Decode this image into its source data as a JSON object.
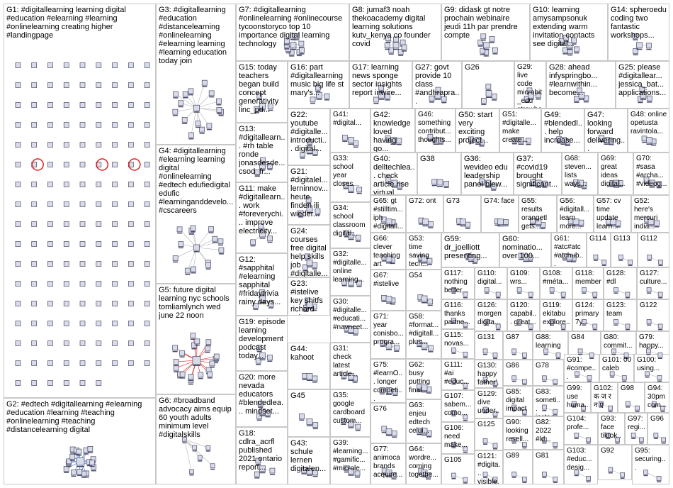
{
  "colors": {
    "panel_border": "#c8c8c8",
    "edge": "#b4b4b4",
    "node_fill": "#d8dce8",
    "node_stroke": "#4a4a6a",
    "accent_red": "#e02020",
    "accent_blue": "#2a62c8"
  },
  "groups": [
    {
      "id": "G1",
      "label": "G1: #digitallearning learning digital #education #elearning #learning #onlinelearning creating higher #landingpage",
      "nodes": 150,
      "style": "grid-isolates"
    },
    {
      "id": "G2",
      "label": "G2: #edtech #digitallearning #elearning #education #learning #teaching #onlinelearning #teaching #distancelearning digital",
      "nodes": 18,
      "style": "hub"
    },
    {
      "id": "G3",
      "label": "G3: #digitallearning #education #distancelearning #onlinelearning #elearning learning #learning education today join",
      "nodes": 16,
      "style": "hub"
    },
    {
      "id": "G4",
      "label": "G4: #digitallearning #elearning learning digital #onlinelearning #edtech edufiedigital edufic #learninganddevelo... #cscareers",
      "nodes": 14,
      "style": "hub"
    },
    {
      "id": "G5",
      "label": "G5: future digital learning nyc schools tomliamlynch wed june 22 noon",
      "nodes": 20,
      "style": "hub"
    },
    {
      "id": "G6",
      "label": "G6: #broadband advocacy aims equip 60 youth adults minimum level #digitalskills",
      "nodes": 6,
      "style": "pairs"
    },
    {
      "id": "G7",
      "label": "G7: #digitallearning #onlinelearning #onlinecourse tycoonstoryco top 10 importance digital learning technology",
      "nodes": 10,
      "style": "hub"
    },
    {
      "id": "G8",
      "label": "G8: jumaf3 noah thekoacademy digital learning solutions kutv_kenya co founder covid",
      "nodes": 8,
      "style": "hub"
    },
    {
      "id": "G9",
      "label": "G9: didask gt notre prochain webinaire jeudi 11h par prendre compte",
      "nodes": 7,
      "style": "hub"
    },
    {
      "id": "G10",
      "label": "G10: learning amysampsonuk extending warm invitation contacts see digital...",
      "nodes": 7,
      "style": "hub"
    },
    {
      "id": "G11",
      "label": "G11: make #digitallearn... work #foreverychi... improve electricity...",
      "nodes": 4,
      "style": "hub"
    },
    {
      "id": "G12",
      "label": "G12: #sapphital #elearning sapphital #fridaytrivia rainy days...",
      "nodes": 4,
      "style": "hub"
    },
    {
      "id": "G13",
      "label": "G13: #digitallearn... #rh table ronde jonasdesde... csod_fr...",
      "nodes": 4,
      "style": "hub"
    },
    {
      "id": "G14",
      "label": "G14: spheroedu coding two fantastic workshops...",
      "nodes": 4,
      "style": "hub"
    },
    {
      "id": "G15",
      "label": "G15: today teachers began build concept generativity linc_pd...",
      "nodes": 4,
      "style": "hub"
    },
    {
      "id": "G16",
      "label": "G16: part #digitallearning music big life st mary's...",
      "nodes": 4,
      "style": "hub"
    },
    {
      "id": "G17",
      "label": "G17: learning news sponge sector insights report inwire...",
      "nodes": 4,
      "style": "hub"
    },
    {
      "id": "G18",
      "label": "G18: cdlra_acrfl published 2021 ontario report...",
      "nodes": 4,
      "style": "hub"
    },
    {
      "id": "G19",
      "label": "G19: episode learning development podcast today...",
      "nodes": 4,
      "style": "hub"
    },
    {
      "id": "G20",
      "label": "G20: more nevada educators #blendedlea... mindset...",
      "nodes": 4,
      "style": "hub"
    },
    {
      "id": "G21",
      "label": "G21: #digitalel... lerninnov... heute finden ili wieder...",
      "nodes": 4,
      "style": "hub"
    },
    {
      "id": "G22",
      "label": "G22: youtube #digitalle... introducti... digital...",
      "nodes": 4,
      "style": "hub"
    },
    {
      "id": "G23",
      "label": "G23: #istelive key shitfs richard culatta...",
      "nodes": 4,
      "style": "hub"
    },
    {
      "id": "G24",
      "label": "G24: courses free digital help skills job #digitalle...",
      "nodes": 4,
      "style": "hub"
    },
    {
      "id": "G25",
      "label": "G25: please #digitallear... jessica_bat... applications...",
      "nodes": 4,
      "style": "hub"
    },
    {
      "id": "G26",
      "label": "G26",
      "nodes": 4,
      "style": "hub"
    },
    {
      "id": "G27",
      "label": "G27: govt provide 10 class #andhrapra...",
      "nodes": 4,
      "style": "hub"
    },
    {
      "id": "G28",
      "label": "G28: ahead infyspringbo... #learnwithin... become...",
      "nodes": 4,
      "style": "hub"
    },
    {
      "id": "G29",
      "label": "G29: live code microbit_edu strawbees...",
      "nodes": 4,
      "style": "hub"
    },
    {
      "id": "G30",
      "label": "G30: #digitalle... #educati... #navneet...",
      "nodes": 3,
      "style": "hub"
    },
    {
      "id": "G31",
      "label": "G31: check latest article...",
      "nodes": 3,
      "style": "hub"
    },
    {
      "id": "G32",
      "label": "G32: #digitalle... online learning...",
      "nodes": 3,
      "style": "hub"
    },
    {
      "id": "G33",
      "label": "G33: school year closes...",
      "nodes": 3,
      "style": "hub"
    },
    {
      "id": "G34",
      "label": "G34: school classroom digital...",
      "nodes": 3,
      "style": "hub"
    },
    {
      "id": "G35",
      "label": "G35: google cardboard custom...",
      "nodes": 3,
      "style": "hub"
    },
    {
      "id": "G36",
      "label": "G36: wevideo edu leadership panel blew...",
      "nodes": 3,
      "style": "hub"
    },
    {
      "id": "G37",
      "label": "G37: #covid19 brought significant...",
      "nodes": 3,
      "style": "hub"
    },
    {
      "id": "G38",
      "label": "G38",
      "nodes": 3,
      "style": "hub"
    },
    {
      "id": "G39",
      "label": "G39: #learning... #gamific... #microle...",
      "nodes": 3,
      "style": "hub"
    },
    {
      "id": "G40",
      "label": "G40: delltechlea... check article rise virtual...",
      "nodes": 3,
      "style": "hub"
    },
    {
      "id": "G41",
      "label": "G41: #digital...",
      "nodes": 3,
      "style": "hub"
    },
    {
      "id": "G42",
      "label": "G42: knowledge loved having go...",
      "nodes": 3,
      "style": "hub"
    },
    {
      "id": "G43",
      "label": "G43: schule lernen digitalen...",
      "nodes": 3,
      "style": "hub"
    },
    {
      "id": "G44",
      "label": "G44: kahoot",
      "nodes": 3,
      "style": "hub"
    },
    {
      "id": "G45",
      "label": "G45",
      "nodes": 3,
      "style": "hub"
    },
    {
      "id": "G46",
      "label": "G46: something contribut... thoughts...",
      "nodes": 3,
      "style": "hub"
    },
    {
      "id": "G47",
      "label": "G47: looking forward delivering...",
      "nodes": 3,
      "style": "hub"
    },
    {
      "id": "G48",
      "label": "G48: online opetusta ravintola...",
      "nodes": 3,
      "style": "hub"
    },
    {
      "id": "G49",
      "label": "G49: #blendedl... help increase...",
      "nodes": 3,
      "style": "hub"
    },
    {
      "id": "G50",
      "label": "G50: start very exciting project...",
      "nodes": 3,
      "style": "hub"
    },
    {
      "id": "G51",
      "label": "G51: #digitalle... make create...",
      "nodes": 3,
      "style": "hub"
    },
    {
      "id": "G52",
      "label": "G52: here's mercuri india...",
      "nodes": 3,
      "style": "hub"
    },
    {
      "id": "G53",
      "label": "G53: time saving tech...",
      "nodes": 3,
      "style": "hub"
    },
    {
      "id": "G54",
      "label": "G54",
      "nodes": 3,
      "style": "hub"
    },
    {
      "id": "G55",
      "label": "G55: results orangetl gets...",
      "nodes": 3,
      "style": "hub"
    },
    {
      "id": "G56",
      "label": "G56: #digitall... learn more...",
      "nodes": 3,
      "style": "hub"
    },
    {
      "id": "G57",
      "label": "G57: cv time update learn...",
      "nodes": 3,
      "style": "hub"
    },
    {
      "id": "G58",
      "label": "G58: #format... #digitall... plus...",
      "nodes": 3,
      "style": "hub"
    },
    {
      "id": "G59",
      "label": "G59: dr_joelliott presenting...",
      "nodes": 3,
      "style": "hub"
    },
    {
      "id": "G60",
      "label": "G60: nominatio... over 100...",
      "nodes": 3,
      "style": "hub"
    },
    {
      "id": "G61",
      "label": "G61: #atc#atc #atchub...",
      "nodes": 3,
      "style": "hub"
    },
    {
      "id": "G62",
      "label": "G62: busy putting final...",
      "nodes": 3,
      "style": "hub"
    },
    {
      "id": "G63",
      "label": "G63: enjeu edtech celui...",
      "nodes": 3,
      "style": "hub"
    },
    {
      "id": "G64",
      "label": "G64: wordre... coming togethe...",
      "nodes": 3,
      "style": "hub"
    },
    {
      "id": "G65",
      "label": "G65: gt #stilltim... iph #digitall...",
      "nodes": 3,
      "style": "hub"
    },
    {
      "id": "G66",
      "label": "G66: clever teaching art goes...",
      "nodes": 3,
      "style": "hub"
    },
    {
      "id": "G67",
      "label": "G67: #istelive",
      "nodes": 3,
      "style": "hub"
    },
    {
      "id": "G68",
      "label": "G68: steven... lists ways...",
      "nodes": 3,
      "style": "hub"
    },
    {
      "id": "G69",
      "label": "G69: great ideas digital...",
      "nodes": 3,
      "style": "hub"
    },
    {
      "id": "G70",
      "label": "G70: #sasa #archa... #videog...",
      "nodes": 3,
      "style": "hub"
    },
    {
      "id": "G71",
      "label": "G71: year conisbo... progra...",
      "nodes": 3,
      "style": "hub"
    },
    {
      "id": "G72",
      "label": "G72: ont",
      "nodes": 3,
      "style": "hub"
    },
    {
      "id": "G73",
      "label": "G73",
      "nodes": 3,
      "style": "hub"
    },
    {
      "id": "G74",
      "label": "G74: face",
      "nodes": 3,
      "style": "hub"
    },
    {
      "id": "G75",
      "label": "G75: #learnO... longer competi...",
      "nodes": 3,
      "style": "hub"
    },
    {
      "id": "G76",
      "label": "G76",
      "nodes": 3,
      "style": "hub"
    },
    {
      "id": "G77",
      "label": "G77: animoca brands acquire...",
      "nodes": 3,
      "style": "hub"
    },
    {
      "id": "G78",
      "label": "G78",
      "nodes": 2,
      "style": "pairs"
    },
    {
      "id": "G79",
      "label": "G79: happy...",
      "nodes": 2,
      "style": "pairs"
    },
    {
      "id": "G80",
      "label": "G80: commit...",
      "nodes": 2,
      "style": "pairs"
    },
    {
      "id": "G81",
      "label": "G81",
      "nodes": 2,
      "style": "pairs"
    },
    {
      "id": "G82",
      "label": "G82: 2022 #ld...",
      "nodes": 2,
      "style": "pairs"
    },
    {
      "id": "G83",
      "label": "G83: someti... instea...",
      "nodes": 2,
      "style": "pairs"
    },
    {
      "id": "G84",
      "label": "G84",
      "nodes": 2,
      "style": "pairs"
    },
    {
      "id": "G85",
      "label": "G85: digital impact",
      "nodes": 2,
      "style": "pairs"
    },
    {
      "id": "G86",
      "label": "G86",
      "nodes": 2,
      "style": "pairs"
    },
    {
      "id": "G87",
      "label": "G87",
      "nodes": 2,
      "style": "pairs"
    },
    {
      "id": "G88",
      "label": "G88: learning",
      "nodes": 2,
      "style": "pairs"
    },
    {
      "id": "G89",
      "label": "G89",
      "nodes": 2,
      "style": "pairs"
    },
    {
      "id": "G90",
      "label": "G90: looking resell...",
      "nodes": 2,
      "style": "pairs"
    },
    {
      "id": "G91",
      "label": "G91: #compe...",
      "nodes": 2,
      "style": "pairs"
    },
    {
      "id": "G92",
      "label": "G92",
      "nodes": 2,
      "style": "pairs"
    },
    {
      "id": "G93",
      "label": "G93: face tiktok...",
      "nodes": 2,
      "style": "pairs"
    },
    {
      "id": "G94",
      "label": "G94: 30pm com...",
      "nodes": 2,
      "style": "pairs"
    },
    {
      "id": "G95",
      "label": "G95: securing...",
      "nodes": 2,
      "style": "pairs"
    },
    {
      "id": "G96",
      "label": "G96",
      "nodes": 2,
      "style": "pairs"
    },
    {
      "id": "G97",
      "label": "G97: regi...",
      "nodes": 2,
      "style": "pairs"
    },
    {
      "id": "G98",
      "label": "G98",
      "nodes": 2,
      "style": "pairs"
    },
    {
      "id": "G99",
      "label": "G99: use huma...",
      "nodes": 2,
      "style": "pairs"
    },
    {
      "id": "G100",
      "label": "G100: using...",
      "nodes": 2,
      "style": "pairs"
    },
    {
      "id": "G101",
      "label": "G101: 00 caleb",
      "nodes": 2,
      "style": "pairs"
    },
    {
      "id": "G102",
      "label": "G102: क ज र न ए",
      "nodes": 2,
      "style": "pairs"
    },
    {
      "id": "G103",
      "label": "G103: #educ... desig...",
      "nodes": 2,
      "style": "pairs"
    },
    {
      "id": "G104",
      "label": "G104: profe...",
      "nodes": 2,
      "style": "pairs"
    },
    {
      "id": "G105",
      "label": "G105",
      "nodes": 2,
      "style": "pairs"
    },
    {
      "id": "G106",
      "label": "G106: need make...",
      "nodes": 2,
      "style": "pairs"
    },
    {
      "id": "G107",
      "label": "G107: sabem... como...",
      "nodes": 2,
      "style": "pairs"
    },
    {
      "id": "G108",
      "label": "G108: #méta...",
      "nodes": 2,
      "style": "pairs"
    },
    {
      "id": "G109",
      "label": "G109: wrs...",
      "nodes": 2,
      "style": "pairs"
    },
    {
      "id": "G110",
      "label": "G110: digital...",
      "nodes": 2,
      "style": "pairs"
    },
    {
      "id": "G111",
      "label": "G111: #ai #educ...",
      "nodes": 2,
      "style": "pairs"
    },
    {
      "id": "G112",
      "label": "G112",
      "nodes": 2,
      "style": "pairs"
    },
    {
      "id": "G113",
      "label": "G113",
      "nodes": 2,
      "style": "pairs"
    },
    {
      "id": "G114",
      "label": "G114",
      "nodes": 2,
      "style": "pairs"
    },
    {
      "id": "G115",
      "label": "G115: novas...",
      "nodes": 2,
      "style": "pairs"
    },
    {
      "id": "G116",
      "label": "G116: thanks partne...",
      "nodes": 2,
      "style": "pairs"
    },
    {
      "id": "G117",
      "label": "G117: nothing better...",
      "nodes": 2,
      "style": "pairs"
    },
    {
      "id": "G118",
      "label": "G118: member",
      "nodes": 2,
      "style": "pairs"
    },
    {
      "id": "G119",
      "label": "G119: ekitabu explore...",
      "nodes": 2,
      "style": "pairs"
    },
    {
      "id": "G120",
      "label": "G120: capabil... great...",
      "nodes": 2,
      "style": "pairs"
    },
    {
      "id": "G121",
      "label": "G121: #digita... visible...",
      "nodes": 2,
      "style": "pairs"
    },
    {
      "id": "G122",
      "label": "G122",
      "nodes": 2,
      "style": "pairs"
    },
    {
      "id": "G123",
      "label": "G123: team",
      "nodes": 2,
      "style": "pairs"
    },
    {
      "id": "G124",
      "label": "G124: primary 7y...",
      "nodes": 2,
      "style": "pairs"
    },
    {
      "id": "G125",
      "label": "G125",
      "nodes": 2,
      "style": "pairs"
    },
    {
      "id": "G126",
      "label": "G126: morgen digita...",
      "nodes": 2,
      "style": "pairs"
    },
    {
      "id": "G127",
      "label": "G127: culture...",
      "nodes": 2,
      "style": "pairs"
    },
    {
      "id": "G128",
      "label": "G128: #dl",
      "nodes": 2,
      "style": "pairs"
    },
    {
      "id": "G129",
      "label": "G129: dive under...",
      "nodes": 2,
      "style": "pairs"
    },
    {
      "id": "G130",
      "label": "G130: happy father'...",
      "nodes": 2,
      "style": "pairs"
    },
    {
      "id": "G131",
      "label": "G131",
      "nodes": 2,
      "style": "pairs"
    }
  ]
}
